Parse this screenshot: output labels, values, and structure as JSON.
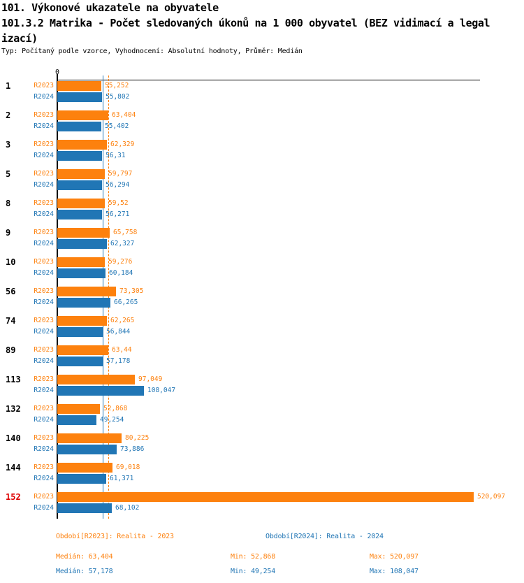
{
  "header": {
    "title": "101. Výkonové ukazatele na obyvatele",
    "subtitle_lines": [
      "101.3.2 Matrika - Počet sledovaných úkonů na 1 000 obyvatel (BEZ vidimací a legal",
      "izací)"
    ],
    "meta": "Typ: Počítaný podle vzorce, Vyhodnocení: Absolutní hodnoty, Průměr: Medián"
  },
  "chart_data": {
    "type": "bar",
    "orientation": "horizontal",
    "title": "101.3.2 Matrika - Počet sledovaných úkonů na 1 000 obyvatel (BEZ vidimací a legalizací)",
    "xlabel": "",
    "ylabel": "",
    "xlim": [
      0,
      526
    ],
    "grid": false,
    "legend_position": "none",
    "axis": {
      "zero_label": "0"
    },
    "series_names": [
      "R2023",
      "R2024"
    ],
    "colors": {
      "r2023": "#fd810e",
      "r2024": "#2176b5",
      "highlight_category": "#dd0000",
      "axis": "#000000"
    },
    "medians": {
      "r2023": 63.404,
      "r2024": 57.178
    },
    "categories": [
      {
        "id": "1",
        "highlight": false,
        "r2023": {
          "value": 55.252,
          "label": "55,252"
        },
        "r2024": {
          "value": 55.802,
          "label": "55,802"
        }
      },
      {
        "id": "2",
        "highlight": false,
        "r2023": {
          "value": 63.404,
          "label": "63,404"
        },
        "r2024": {
          "value": 55.402,
          "label": "55,402"
        }
      },
      {
        "id": "3",
        "highlight": false,
        "r2023": {
          "value": 62.329,
          "label": "62,329"
        },
        "r2024": {
          "value": 56.31,
          "label": "56,31"
        }
      },
      {
        "id": "5",
        "highlight": false,
        "r2023": {
          "value": 59.797,
          "label": "59,797"
        },
        "r2024": {
          "value": 56.294,
          "label": "56,294"
        }
      },
      {
        "id": "8",
        "highlight": false,
        "r2023": {
          "value": 59.52,
          "label": "59,52"
        },
        "r2024": {
          "value": 56.271,
          "label": "56,271"
        }
      },
      {
        "id": "9",
        "highlight": false,
        "r2023": {
          "value": 65.758,
          "label": "65,758"
        },
        "r2024": {
          "value": 62.327,
          "label": "62,327"
        }
      },
      {
        "id": "10",
        "highlight": false,
        "r2023": {
          "value": 59.276,
          "label": "59,276"
        },
        "r2024": {
          "value": 60.184,
          "label": "60,184"
        }
      },
      {
        "id": "56",
        "highlight": false,
        "r2023": {
          "value": 73.305,
          "label": "73,305"
        },
        "r2024": {
          "value": 66.265,
          "label": "66,265"
        }
      },
      {
        "id": "74",
        "highlight": false,
        "r2023": {
          "value": 62.265,
          "label": "62,265"
        },
        "r2024": {
          "value": 56.844,
          "label": "56,844"
        }
      },
      {
        "id": "89",
        "highlight": false,
        "r2023": {
          "value": 63.44,
          "label": "63,44"
        },
        "r2024": {
          "value": 57.178,
          "label": "57,178"
        }
      },
      {
        "id": "113",
        "highlight": false,
        "r2023": {
          "value": 97.049,
          "label": "97,049"
        },
        "r2024": {
          "value": 108.047,
          "label": "108,047"
        }
      },
      {
        "id": "132",
        "highlight": false,
        "r2023": {
          "value": 52.868,
          "label": "52,868"
        },
        "r2024": {
          "value": 49.254,
          "label": "49,254"
        }
      },
      {
        "id": "140",
        "highlight": false,
        "r2023": {
          "value": 80.225,
          "label": "80,225"
        },
        "r2024": {
          "value": 73.886,
          "label": "73,886"
        }
      },
      {
        "id": "144",
        "highlight": false,
        "r2023": {
          "value": 69.018,
          "label": "69,018"
        },
        "r2024": {
          "value": 61.371,
          "label": "61,371"
        }
      },
      {
        "id": "152",
        "highlight": true,
        "r2023": {
          "value": 520.097,
          "label": "520,097"
        },
        "r2024": {
          "value": 68.102,
          "label": "68,102"
        }
      }
    ]
  },
  "footer": {
    "period_r2023": "Období[R2023]: Realita - 2023",
    "period_r2024": "Období[R2024]: Realita - 2024",
    "stats_r2023": {
      "median": "Medián: 63,404",
      "min": "Min: 52,868",
      "max": "Max: 520,097"
    },
    "stats_r2024": {
      "median": "Medián: 57,178",
      "min": "Min: 49,254",
      "max": "Max: 108,047"
    }
  }
}
